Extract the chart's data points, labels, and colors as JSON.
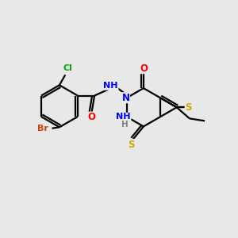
{
  "background_color": "#e8e8e8",
  "atom_colors": {
    "C": "#000000",
    "N": "#0000ff",
    "O": "#ff0000",
    "S": "#ccaa00",
    "Br": "#cc4400",
    "Cl": "#00aa00",
    "H": "#808080"
  },
  "bond_color": "#000000",
  "bond_width": 1.6,
  "figsize": [
    3.0,
    3.0
  ],
  "dpi": 100,
  "bg": "#e8e8e8"
}
